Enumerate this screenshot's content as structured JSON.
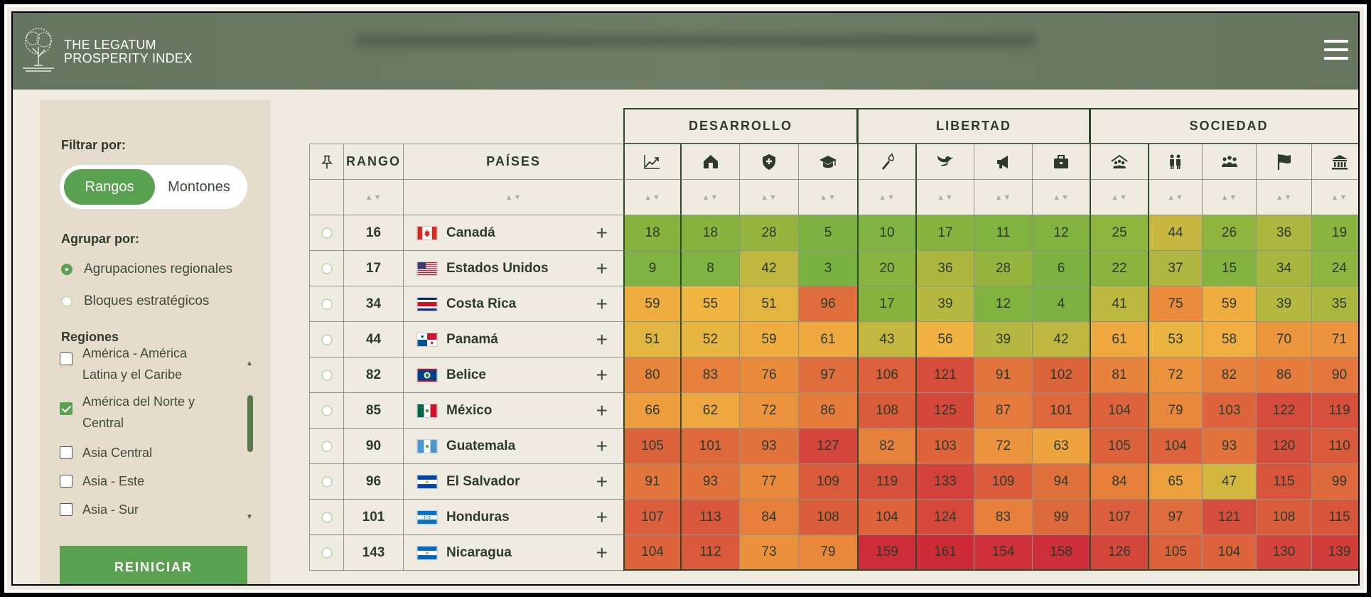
{
  "header": {
    "logo_line1": "THE LEGATUM",
    "logo_line2": "PROSPERITY INDEX"
  },
  "sidebar": {
    "filter_label": "Filtrar por:",
    "toggle": {
      "active": "Rangos",
      "inactive": "Montones"
    },
    "group_label": "Agrupar por:",
    "group_options": [
      {
        "label": "Agrupaciones regionales",
        "selected": true
      },
      {
        "label": "Bloques estratégicos",
        "selected": false
      }
    ],
    "regions_label": "Regiones",
    "regions": [
      {
        "label_line1": "América - América",
        "label_line2": "Latina y el Caribe",
        "checked": false
      },
      {
        "label_line1": "América del Norte y",
        "label_line2": "Central",
        "checked": true
      },
      {
        "label_line1": "Asia Central",
        "label_line2": "",
        "checked": false
      },
      {
        "label_line1": "Asia - Este",
        "label_line2": "",
        "checked": false
      },
      {
        "label_line1": "Asia - Sur",
        "label_line2": "",
        "checked": false
      }
    ],
    "reset_label": "REINICIAR"
  },
  "table": {
    "col_rank": "RANGO",
    "col_country": "PAÍSES",
    "groups": [
      {
        "label": "DESARROLLO",
        "icons": [
          "chart-trend-icon",
          "house-icon",
          "shield-icon",
          "graduation-cap-icon"
        ]
      },
      {
        "label": "LIBERTAD",
        "icons": [
          "torch-icon",
          "bird-icon",
          "megaphone-icon",
          "briefcase-icon"
        ]
      },
      {
        "label": "SOCIEDAD",
        "icons": [
          "community-icon",
          "family-icon",
          "people-group-icon",
          "flag-icon",
          "institution-icon"
        ]
      }
    ],
    "rows": [
      {
        "rank": "16",
        "country": "Canadá",
        "flag": "ca",
        "values": [
          18,
          18,
          28,
          5,
          10,
          17,
          11,
          12,
          25,
          44,
          26,
          36,
          19
        ]
      },
      {
        "rank": "17",
        "country": "Estados Unidos",
        "flag": "us",
        "values": [
          9,
          8,
          42,
          3,
          20,
          36,
          28,
          6,
          22,
          37,
          15,
          34,
          24
        ]
      },
      {
        "rank": "34",
        "country": "Costa Rica",
        "flag": "cr",
        "values": [
          59,
          55,
          51,
          96,
          17,
          39,
          12,
          4,
          41,
          75,
          59,
          39,
          35
        ]
      },
      {
        "rank": "44",
        "country": "Panamá",
        "flag": "pa",
        "values": [
          51,
          52,
          59,
          61,
          43,
          56,
          39,
          42,
          61,
          53,
          58,
          70,
          71
        ]
      },
      {
        "rank": "82",
        "country": "Belice",
        "flag": "bz",
        "values": [
          80,
          83,
          76,
          97,
          106,
          121,
          91,
          102,
          81,
          72,
          82,
          86,
          90
        ]
      },
      {
        "rank": "85",
        "country": "México",
        "flag": "mx",
        "values": [
          66,
          62,
          72,
          86,
          108,
          125,
          87,
          101,
          104,
          79,
          103,
          122,
          119
        ]
      },
      {
        "rank": "90",
        "country": "Guatemala",
        "flag": "gt",
        "values": [
          105,
          101,
          93,
          127,
          82,
          103,
          72,
          63,
          105,
          104,
          93,
          120,
          110
        ]
      },
      {
        "rank": "96",
        "country": "El Salvador",
        "flag": "sv",
        "values": [
          91,
          93,
          77,
          109,
          119,
          133,
          109,
          94,
          84,
          65,
          47,
          115,
          99
        ]
      },
      {
        "rank": "101",
        "country": "Honduras",
        "flag": "hn",
        "values": [
          107,
          113,
          84,
          108,
          104,
          124,
          83,
          99,
          107,
          97,
          121,
          108,
          115
        ]
      },
      {
        "rank": "143",
        "country": "Nicaragua",
        "flag": "ni",
        "values": [
          104,
          112,
          73,
          79,
          159,
          161,
          154,
          158,
          126,
          105,
          104,
          130,
          139
        ]
      }
    ]
  }
}
